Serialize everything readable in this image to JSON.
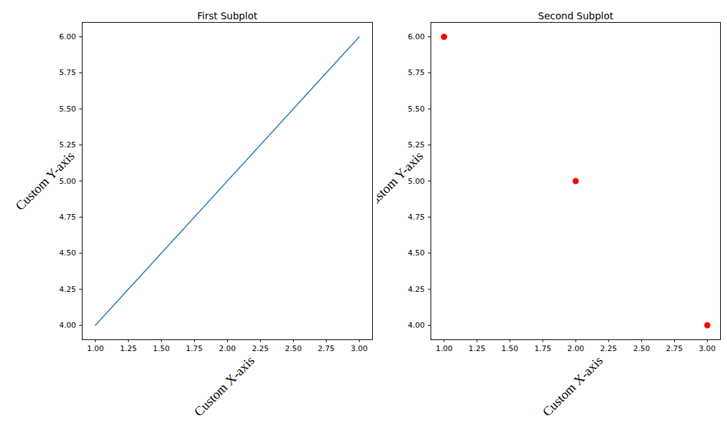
{
  "chart_data": [
    {
      "type": "line",
      "title": "First Subplot",
      "x_label": "Custom X-axis",
      "y_label": "Custom Y-axis",
      "x": [
        1,
        2,
        3
      ],
      "values": [
        4,
        5,
        6
      ],
      "color": "#1f77b4",
      "xlim": [
        0.9,
        3.1
      ],
      "ylim": [
        3.9,
        6.1
      ],
      "xticks": [
        {
          "value": 1,
          "label": "1.00"
        },
        {
          "value": 1.25,
          "label": "1.25"
        },
        {
          "value": 1.5,
          "label": "1.50"
        },
        {
          "value": 1.75,
          "label": "1.75"
        },
        {
          "value": 2,
          "label": "2.00"
        },
        {
          "value": 2.25,
          "label": "2.25"
        },
        {
          "value": 2.5,
          "label": "2.50"
        },
        {
          "value": 2.75,
          "label": "2.75"
        },
        {
          "value": 3,
          "label": "3.00"
        }
      ],
      "yticks": [
        {
          "value": 4,
          "label": "4.00"
        },
        {
          "value": 4.25,
          "label": "4.25"
        },
        {
          "value": 4.5,
          "label": "4.50"
        },
        {
          "value": 4.75,
          "label": "4.75"
        },
        {
          "value": 5,
          "label": "5.00"
        },
        {
          "value": 5.25,
          "label": "5.25"
        },
        {
          "value": 5.5,
          "label": "5.50"
        },
        {
          "value": 5.75,
          "label": "5.75"
        },
        {
          "value": 6,
          "label": "6.00"
        }
      ],
      "grid": false
    },
    {
      "type": "scatter",
      "title": "Second Subplot",
      "x_label": "Custom X-axis",
      "y_label": "Custom Y-axis",
      "x": [
        1,
        2,
        3
      ],
      "values": [
        6,
        5,
        4
      ],
      "color": "red",
      "marker": "circle",
      "xlim": [
        0.9,
        3.1
      ],
      "ylim": [
        3.9,
        6.1
      ],
      "xticks": [
        {
          "value": 1,
          "label": "1.00"
        },
        {
          "value": 1.25,
          "label": "1.25"
        },
        {
          "value": 1.5,
          "label": "1.50"
        },
        {
          "value": 1.75,
          "label": "1.75"
        },
        {
          "value": 2,
          "label": "2.00"
        },
        {
          "value": 2.25,
          "label": "2.25"
        },
        {
          "value": 2.5,
          "label": "2.50"
        },
        {
          "value": 2.75,
          "label": "2.75"
        },
        {
          "value": 3,
          "label": "3.00"
        }
      ],
      "yticks": [
        {
          "value": 4,
          "label": "4.00"
        },
        {
          "value": 4.25,
          "label": "4.25"
        },
        {
          "value": 4.5,
          "label": "4.50"
        },
        {
          "value": 4.75,
          "label": "4.75"
        },
        {
          "value": 5,
          "label": "5.00"
        },
        {
          "value": 5.25,
          "label": "5.25"
        },
        {
          "value": 5.5,
          "label": "5.50"
        },
        {
          "value": 5.75,
          "label": "5.75"
        },
        {
          "value": 6,
          "label": "6.00"
        }
      ],
      "grid": false
    }
  ]
}
